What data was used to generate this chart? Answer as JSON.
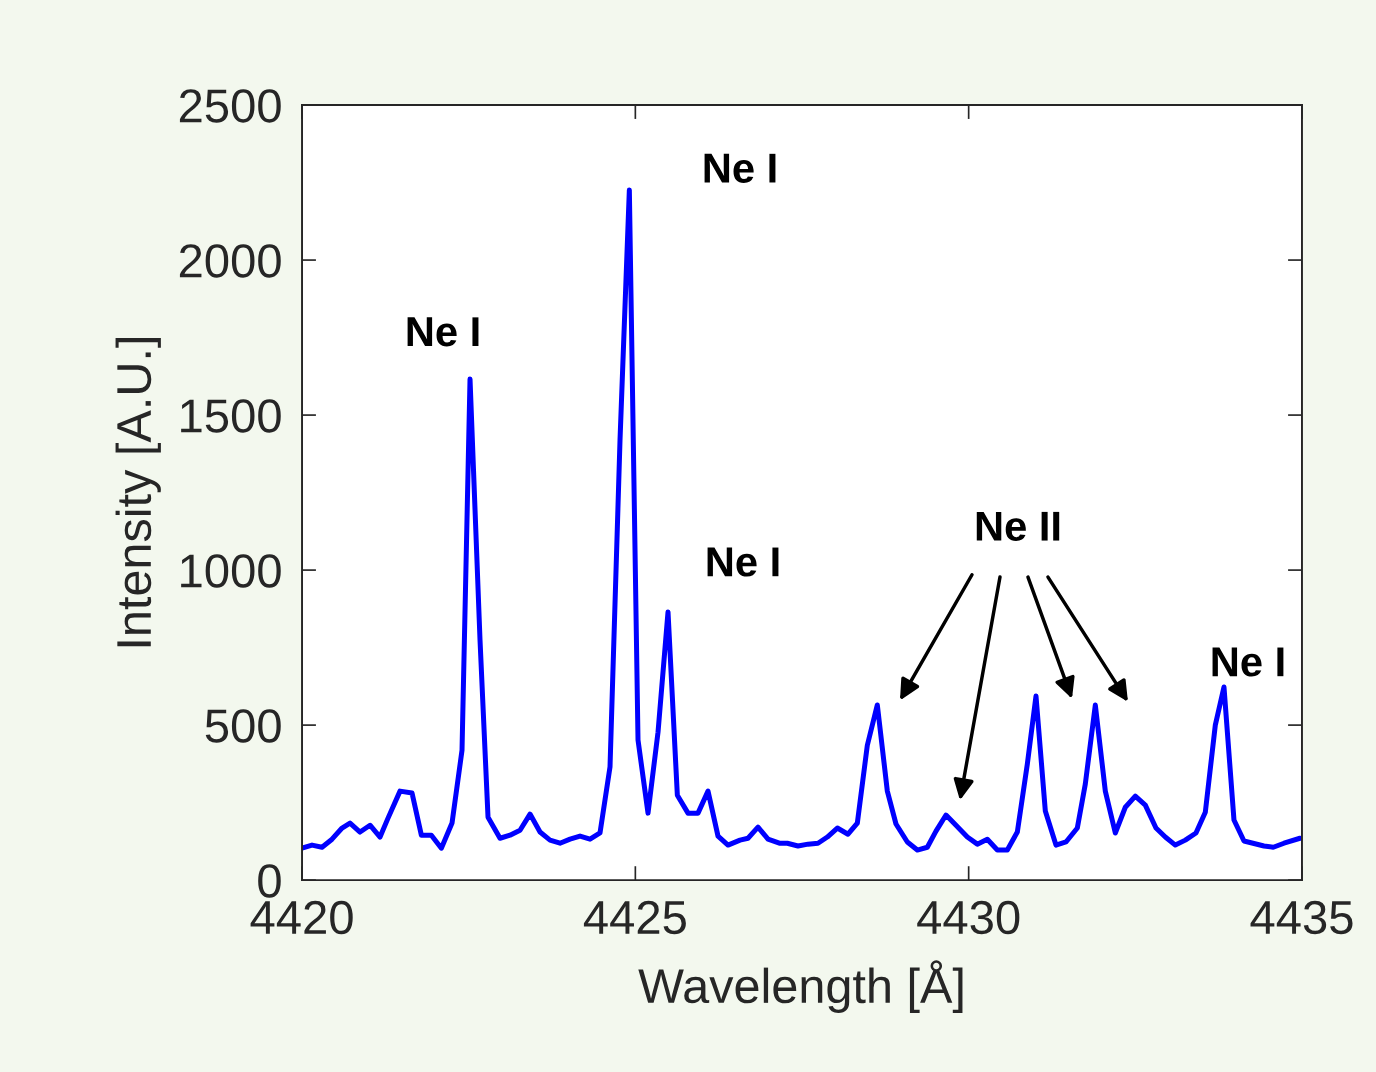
{
  "chart_data": {
    "type": "line",
    "xlabel": "Wavelength [Å]",
    "ylabel": "Intensity [A.U.]",
    "xlim": [
      4420,
      4435
    ],
    "xticks": [
      4420,
      4425,
      4430,
      4435
    ],
    "ylim": [
      0,
      2500
    ],
    "yticks": [
      0,
      500,
      1000,
      1500,
      2000,
      2500
    ],
    "grid": false,
    "legend": false,
    "marker": "none",
    "line_style": "solid",
    "series": [
      {
        "color": "#0000ff",
        "x": [
          4420.0,
          4420.15,
          4420.3,
          4420.45,
          4420.6,
          4420.72,
          4420.87,
          4421.02,
          4421.17,
          4421.29,
          4421.47,
          4421.65,
          4421.79,
          4421.94,
          4422.09,
          4422.25,
          4422.4,
          4422.52,
          4422.67,
          4422.79,
          4422.97,
          4423.12,
          4423.27,
          4423.42,
          4423.57,
          4423.72,
          4423.87,
          4424.02,
          4424.17,
          4424.32,
          4424.47,
          4424.62,
          4424.77,
          4424.91,
          4425.04,
          4425.19,
          4425.34,
          4425.49,
          4425.63,
          4425.79,
          4425.94,
          4426.09,
          4426.24,
          4426.39,
          4426.57,
          4426.69,
          4426.84,
          4426.99,
          4427.16,
          4427.28,
          4427.44,
          4427.59,
          4427.74,
          4427.88,
          4428.03,
          4428.19,
          4428.33,
          4428.48,
          4428.63,
          4428.78,
          4428.91,
          4429.08,
          4429.23,
          4429.38,
          4429.51,
          4429.66,
          4429.81,
          4429.98,
          4430.13,
          4430.28,
          4430.43,
          4430.58,
          4430.73,
          4430.88,
          4431.01,
          4431.15,
          4431.31,
          4431.46,
          4431.63,
          4431.75,
          4431.9,
          4432.05,
          4432.2,
          4432.35,
          4432.5,
          4432.65,
          4432.81,
          4432.95,
          4433.1,
          4433.25,
          4433.41,
          4433.55,
          4433.7,
          4433.83,
          4433.98,
          4434.13,
          4434.43,
          4434.57,
          4434.73,
          4434.97
        ],
        "values": [
          103,
          113,
          106,
          132,
          168,
          184,
          155,
          177,
          139,
          200,
          287,
          281,
          145,
          145,
          103,
          184,
          419,
          1616,
          774,
          203,
          135,
          145,
          161,
          213,
          155,
          129,
          119,
          132,
          142,
          132,
          152,
          365,
          1419,
          2226,
          452,
          216,
          477,
          865,
          274,
          216,
          216,
          287,
          142,
          113,
          129,
          135,
          171,
          132,
          119,
          119,
          110,
          116,
          119,
          139,
          168,
          148,
          184,
          435,
          565,
          287,
          181,
          123,
          97,
          106,
          158,
          210,
          177,
          139,
          116,
          132,
          97,
          97,
          155,
          374,
          594,
          223,
          113,
          123,
          168,
          310,
          565,
          287,
          152,
          235,
          271,
          242,
          168,
          139,
          113,
          129,
          152,
          219,
          500,
          623,
          194,
          126,
          110,
          106,
          119,
          135
        ]
      }
    ],
    "annotations": [
      "Ne I",
      "Ne I",
      "Ne I",
      "Ne II",
      "Ne I"
    ]
  }
}
